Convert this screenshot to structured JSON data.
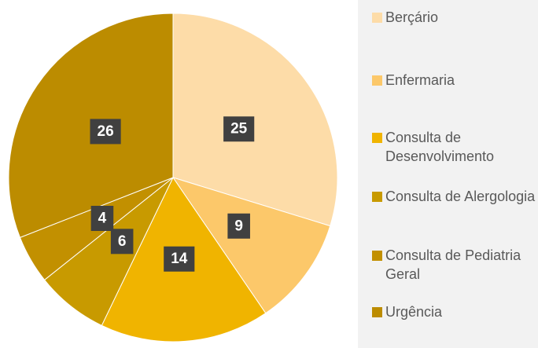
{
  "chart_data": {
    "type": "pie",
    "categories": [
      "Berçário",
      "Enfermaria",
      "Consulta de Desenvolvimento",
      "Consulta de Alergologia",
      "Consulta de Pediatria Geral",
      "Urgência"
    ],
    "values": [
      25,
      9,
      14,
      6,
      4,
      26
    ],
    "colors": [
      "#fddca8",
      "#fcc86a",
      "#f0b400",
      "#c89a00",
      "#c29000",
      "#bc8c00"
    ],
    "legend": "right"
  }
}
